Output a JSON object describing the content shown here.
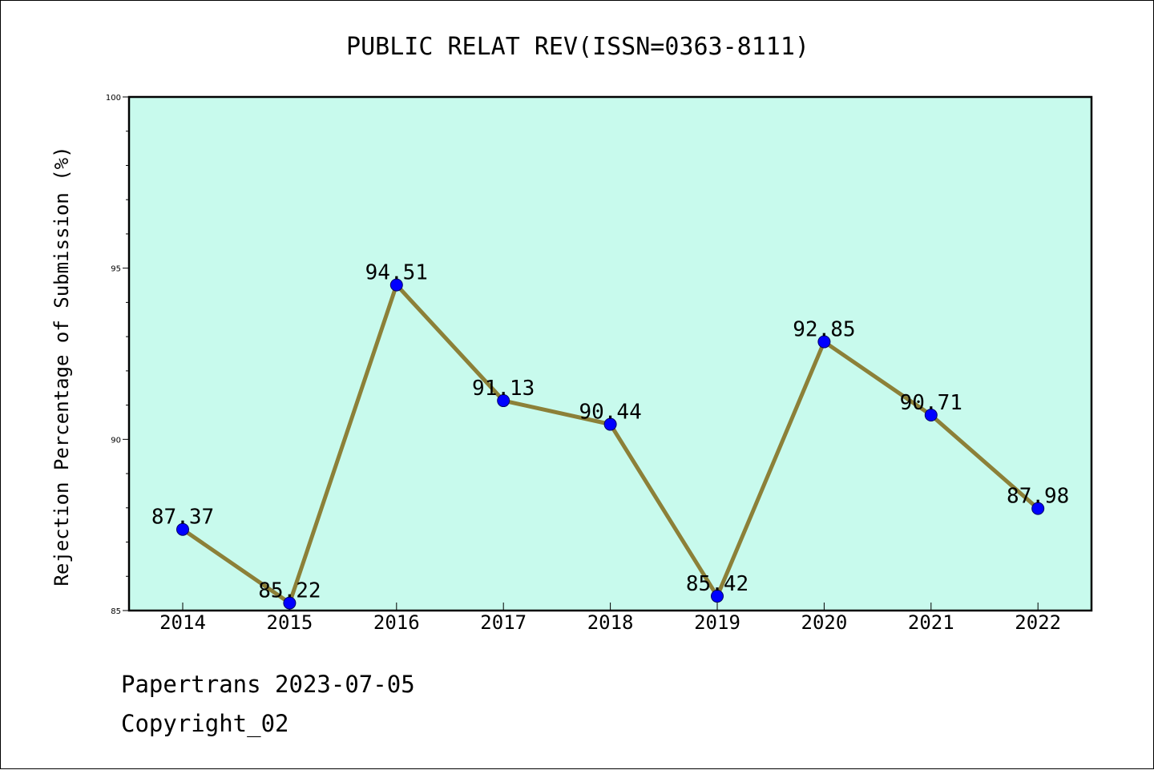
{
  "colors": {
    "plot_background": "#c8faed",
    "line": "#8c8038",
    "marker_fill": "#0000ff",
    "marker_edge": "#000066",
    "axes": "#000000"
  },
  "footer": {
    "date_line": "Papertrans 2023-07-05",
    "copyright_line": "Copyright_02"
  },
  "chart_data": {
    "type": "line",
    "title": "PUBLIC RELAT REV(ISSN=0363-8111)",
    "xlabel": "",
    "ylabel": "Rejection Percentage of Submission (%)",
    "categories": [
      "2014",
      "2015",
      "2016",
      "2017",
      "2018",
      "2019",
      "2020",
      "2021",
      "2022"
    ],
    "series": [
      {
        "values": [
          87.37,
          85.22,
          94.51,
          91.13,
          90.44,
          85.42,
          92.85,
          90.71,
          87.98
        ],
        "data_labels": [
          "87.37",
          "85.22",
          "94.51",
          "91.13",
          "90.44",
          "85.42",
          "92.85",
          "90.71",
          "87.98"
        ]
      }
    ],
    "ylim": [
      85,
      100
    ],
    "yticks": [
      85,
      90,
      95,
      100
    ],
    "ytick_labels": [
      "85",
      "90",
      "95",
      "100"
    ],
    "grid": false,
    "legend": "none"
  }
}
